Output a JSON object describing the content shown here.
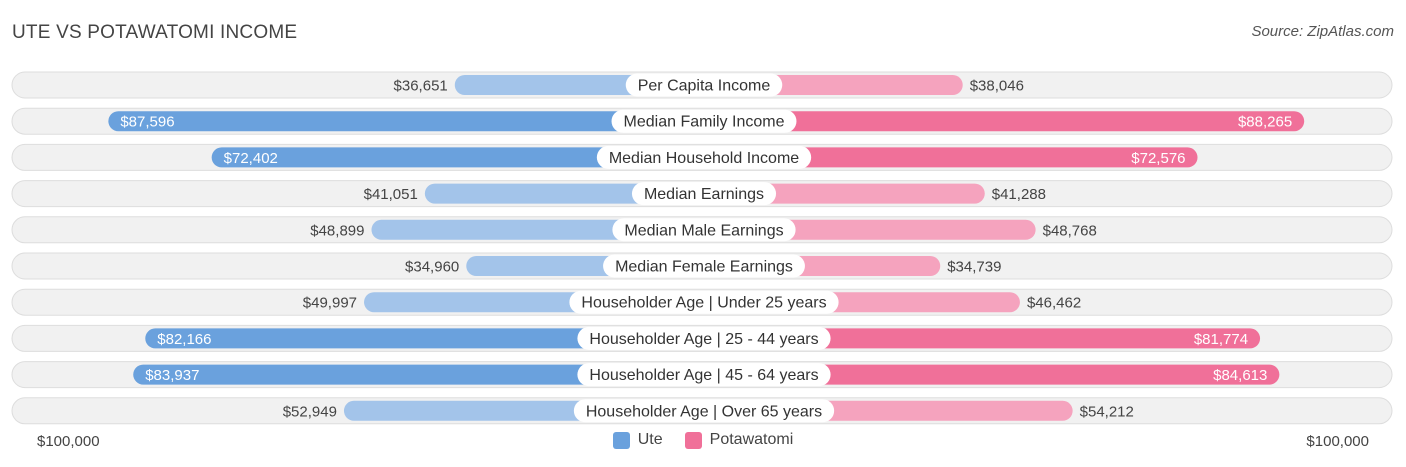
{
  "title": "UTE VS POTAWATOMI INCOME",
  "source": "Source: ZipAtlas.com",
  "axis": {
    "left_label": "$100,000",
    "right_label": "$100,000"
  },
  "legend": [
    {
      "name": "Ute",
      "color": "#6aa1dd"
    },
    {
      "name": "Potawatomi",
      "color": "#f07099"
    }
  ],
  "colors": {
    "ute_strong": "#6aa1dd",
    "ute_light": "#a3c4ea",
    "pota_strong": "#f07099",
    "pota_light": "#f5a3be",
    "track": "#f1f1f1",
    "track_border": "#dddddd"
  },
  "chart_data": {
    "type": "bar",
    "orientation": "diverging-horizontal",
    "max": 100000,
    "categories": [
      "Per Capita Income",
      "Median Family Income",
      "Median Household Income",
      "Median Earnings",
      "Median Male Earnings",
      "Median Female Earnings",
      "Householder Age | Under 25 years",
      "Householder Age | 25 - 44 years",
      "Householder Age | 45 - 64 years",
      "Householder Age | Over 65 years"
    ],
    "series": [
      {
        "name": "Ute",
        "values": [
          36651,
          87596,
          72402,
          41051,
          48899,
          34960,
          49997,
          82166,
          83937,
          52949
        ],
        "labels": [
          "$36,651",
          "$87,596",
          "$72,402",
          "$41,051",
          "$48,899",
          "$34,960",
          "$49,997",
          "$82,166",
          "$83,937",
          "$52,949"
        ]
      },
      {
        "name": "Potawatomi",
        "values": [
          38046,
          88265,
          72576,
          41288,
          48768,
          34739,
          46462,
          81774,
          84613,
          54212
        ],
        "labels": [
          "$38,046",
          "$88,265",
          "$72,576",
          "$41,288",
          "$48,768",
          "$34,739",
          "$46,462",
          "$81,774",
          "$84,613",
          "$54,212"
        ]
      }
    ]
  }
}
